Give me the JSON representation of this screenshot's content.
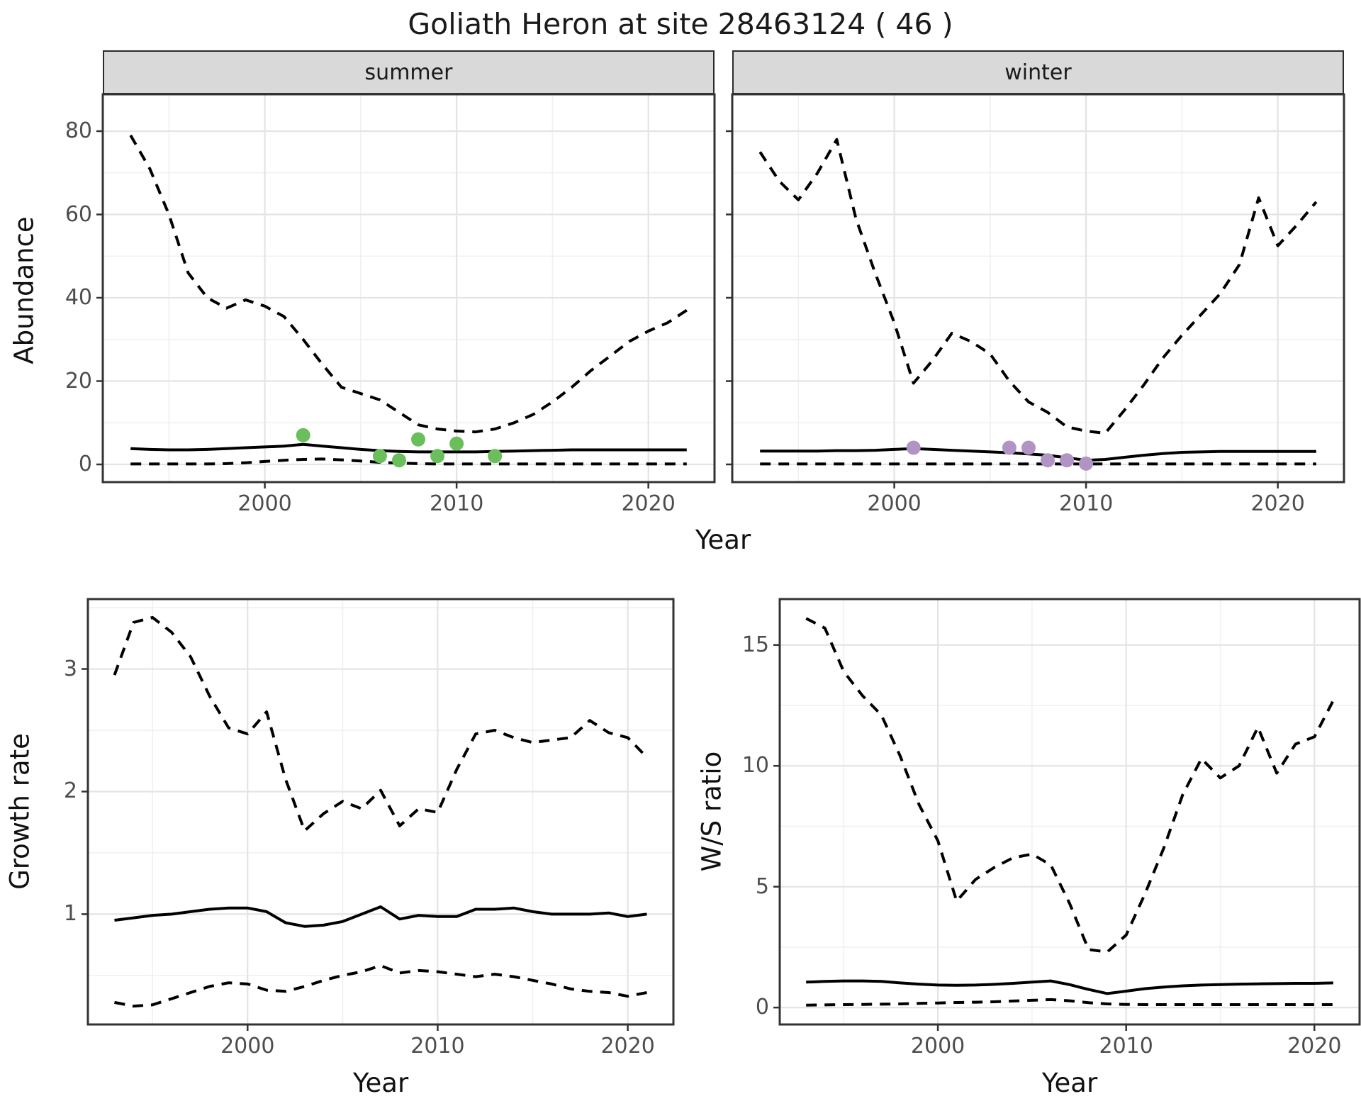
{
  "title": "Goliath Heron at site 28463124 ( 46 )",
  "colors": {
    "line": "#000000",
    "points_summer": "#6abe5c",
    "points_winter": "#b194c4",
    "strip_bg": "#d9d9d9",
    "strip_border": "#2b2b2b",
    "panel_border": "#333333",
    "grid_major": "#e4e4e4",
    "grid_minor": "#f0f0f0",
    "tick_text": "#4d4d4d"
  },
  "chart_data": [
    {
      "type": "line",
      "facet": "summer",
      "ylabel": "Abundance",
      "xlabel": "Year",
      "x_range": [
        1991.55,
        2023.45
      ],
      "y_range": [
        -4.25,
        88.85
      ],
      "xticks": [
        2000,
        2010,
        2020
      ],
      "yticks": [
        0,
        20,
        40,
        60,
        80
      ],
      "xminor": [
        1995,
        2005,
        2015
      ],
      "yminor": [
        10,
        30,
        50,
        70
      ],
      "grid": true,
      "legend": "none",
      "years": [
        1993,
        1994,
        1995,
        1996,
        1997,
        1998,
        1999,
        2000,
        2001,
        2002,
        2003,
        2004,
        2005,
        2006,
        2007,
        2008,
        2009,
        2010,
        2011,
        2012,
        2013,
        2014,
        2015,
        2016,
        2017,
        2018,
        2019,
        2020,
        2021,
        2022
      ],
      "series": [
        {
          "name": "upper_95ci",
          "style": "dashed",
          "values": [
            79,
            71,
            60,
            46,
            40,
            37.5,
            39.5,
            38,
            35.5,
            30,
            24,
            18.5,
            17,
            15.5,
            12.5,
            9.5,
            8.5,
            8,
            7.8,
            8.5,
            10,
            12,
            15,
            18.5,
            22.5,
            26,
            29.5,
            32,
            34,
            37
          ]
        },
        {
          "name": "median",
          "style": "solid",
          "values": [
            3.8,
            3.6,
            3.5,
            3.5,
            3.6,
            3.8,
            4,
            4.2,
            4.4,
            4.8,
            4.4,
            4,
            3.6,
            3.3,
            3.1,
            3,
            3,
            3,
            3,
            3.1,
            3.2,
            3.3,
            3.4,
            3.5,
            3.5,
            3.5,
            3.5,
            3.5,
            3.5,
            3.5
          ]
        },
        {
          "name": "lower_95ci",
          "style": "dashed",
          "values": [
            0.1,
            0.1,
            0.1,
            0.1,
            0.1,
            0.2,
            0.4,
            0.7,
            1,
            1.2,
            1.3,
            1.1,
            0.8,
            0.5,
            0.3,
            0.2,
            0.1,
            0.1,
            0.1,
            0.1,
            0.1,
            0.1,
            0.1,
            0.1,
            0.1,
            0.1,
            0.1,
            0.1,
            0.1,
            0.1
          ]
        }
      ],
      "points": {
        "color": "#6abe5c",
        "data": [
          [
            2002,
            7
          ],
          [
            2006,
            2
          ],
          [
            2007,
            1
          ],
          [
            2008,
            6
          ],
          [
            2009,
            2
          ],
          [
            2010,
            5
          ],
          [
            2012,
            2
          ]
        ]
      }
    },
    {
      "type": "line",
      "facet": "winter",
      "ylabel": "Abundance",
      "xlabel": "Year",
      "x_range": [
        1991.55,
        2023.45
      ],
      "y_range": [
        -4.25,
        88.85
      ],
      "xticks": [
        2000,
        2010,
        2020
      ],
      "yticks": [
        0,
        20,
        40,
        60,
        80
      ],
      "xminor": [
        1995,
        2005,
        2015
      ],
      "yminor": [
        10,
        30,
        50,
        70
      ],
      "grid": true,
      "legend": "none",
      "years": [
        1993,
        1994,
        1995,
        1996,
        1997,
        1998,
        1999,
        2000,
        2001,
        2002,
        2003,
        2004,
        2005,
        2006,
        2007,
        2008,
        2009,
        2010,
        2011,
        2012,
        2013,
        2014,
        2015,
        2016,
        2017,
        2018,
        2019,
        2020,
        2021,
        2022
      ],
      "series": [
        {
          "name": "upper_95ci",
          "style": "dashed",
          "values": [
            75,
            68,
            63.5,
            70,
            78,
            59,
            46,
            34,
            19.5,
            25,
            31.5,
            29.5,
            26.5,
            20,
            15,
            12.5,
            9,
            8,
            7.5,
            13,
            19,
            25.5,
            31,
            36,
            41,
            48,
            64,
            52.5,
            57.5,
            63
          ]
        },
        {
          "name": "median",
          "style": "solid",
          "values": [
            3.2,
            3.2,
            3.2,
            3.2,
            3.3,
            3.3,
            3.4,
            3.6,
            3.8,
            3.6,
            3.4,
            3.2,
            3,
            2.8,
            2.5,
            2.2,
            1.6,
            1,
            1.2,
            1.7,
            2.2,
            2.6,
            2.9,
            3,
            3.1,
            3.1,
            3.1,
            3.1,
            3.1,
            3.1
          ]
        },
        {
          "name": "lower_95ci",
          "style": "dashed",
          "values": [
            0.1,
            0.1,
            0.1,
            0.1,
            0.1,
            0.1,
            0.1,
            0.1,
            0.1,
            0.1,
            0.1,
            0.1,
            0.1,
            0.1,
            0.1,
            0.1,
            0.1,
            0.1,
            0.1,
            0.1,
            0.1,
            0.1,
            0.1,
            0.1,
            0.1,
            0.1,
            0.1,
            0.1,
            0.1,
            0.1
          ]
        }
      ],
      "points": {
        "color": "#b194c4",
        "data": [
          [
            2001,
            4
          ],
          [
            2006,
            4
          ],
          [
            2007,
            4
          ],
          [
            2008,
            1
          ],
          [
            2009,
            1
          ],
          [
            2010,
            0.2
          ]
        ]
      }
    },
    {
      "type": "line",
      "facet": null,
      "ylabel": "Growth rate",
      "xlabel": "Year",
      "x_range": [
        1991.6,
        2022.4
      ],
      "y_range": [
        0.1,
        3.57
      ],
      "xticks": [
        2000,
        2010,
        2020
      ],
      "yticks": [
        1,
        2,
        3
      ],
      "xminor": [
        1995,
        2005,
        2015
      ],
      "yminor": [
        0.5,
        1.5,
        2.5,
        3.5
      ],
      "grid": true,
      "legend": "none",
      "years": [
        1993,
        1994,
        1995,
        1996,
        1997,
        1998,
        1999,
        2000,
        2001,
        2002,
        2003,
        2004,
        2005,
        2006,
        2007,
        2008,
        2009,
        2010,
        2011,
        2012,
        2013,
        2014,
        2015,
        2016,
        2017,
        2018,
        2019,
        2020,
        2021
      ],
      "series": [
        {
          "name": "upper_95ci",
          "style": "dashed",
          "values": [
            2.95,
            3.38,
            3.42,
            3.3,
            3.1,
            2.78,
            2.52,
            2.47,
            2.65,
            2.1,
            1.68,
            1.82,
            1.92,
            1.86,
            2.01,
            1.72,
            1.86,
            1.83,
            2.18,
            2.47,
            2.5,
            2.44,
            2.4,
            2.42,
            2.44,
            2.58,
            2.48,
            2.44,
            2.28
          ]
        },
        {
          "name": "median",
          "style": "solid",
          "values": [
            0.95,
            0.97,
            0.99,
            1.0,
            1.02,
            1.04,
            1.05,
            1.05,
            1.02,
            0.93,
            0.9,
            0.91,
            0.94,
            1.0,
            1.06,
            0.96,
            0.99,
            0.98,
            0.98,
            1.04,
            1.04,
            1.05,
            1.02,
            1.0,
            1.0,
            1.0,
            1.01,
            0.98,
            1.0
          ]
        },
        {
          "name": "lower_95ci",
          "style": "dashed",
          "values": [
            0.28,
            0.25,
            0.26,
            0.31,
            0.36,
            0.41,
            0.44,
            0.43,
            0.38,
            0.37,
            0.41,
            0.46,
            0.5,
            0.53,
            0.58,
            0.52,
            0.54,
            0.53,
            0.51,
            0.49,
            0.51,
            0.49,
            0.46,
            0.43,
            0.39,
            0.37,
            0.36,
            0.33,
            0.36
          ]
        }
      ],
      "points": null
    },
    {
      "type": "line",
      "facet": null,
      "ylabel": "W/S ratio",
      "xlabel": "Year",
      "x_range": [
        1991.6,
        2022.4
      ],
      "y_range": [
        -0.7,
        16.9
      ],
      "xticks": [
        2000,
        2010,
        2020
      ],
      "yticks": [
        0,
        5,
        10,
        15
      ],
      "xminor": [
        1995,
        2005,
        2015
      ],
      "yminor": [
        2.5,
        7.5,
        12.5
      ],
      "grid": true,
      "legend": "none",
      "years": [
        1993,
        1994,
        1995,
        1996,
        1997,
        1998,
        1999,
        2000,
        2001,
        2002,
        2003,
        2004,
        2005,
        2006,
        2007,
        2008,
        2009,
        2010,
        2011,
        2012,
        2013,
        2014,
        2015,
        2016,
        2017,
        2018,
        2019,
        2020,
        2021
      ],
      "series": [
        {
          "name": "upper_95ci",
          "style": "dashed",
          "values": [
            16.1,
            15.7,
            13.9,
            12.9,
            12.1,
            10.4,
            8.4,
            6.9,
            4.4,
            5.3,
            5.8,
            6.2,
            6.35,
            5.9,
            4.3,
            2.4,
            2.3,
            3.0,
            4.7,
            6.6,
            8.8,
            10.3,
            9.5,
            10.0,
            11.6,
            9.7,
            10.9,
            11.2,
            12.7
          ]
        },
        {
          "name": "median",
          "style": "solid",
          "values": [
            1.05,
            1.08,
            1.1,
            1.1,
            1.08,
            1.02,
            0.97,
            0.93,
            0.92,
            0.93,
            0.96,
            1.0,
            1.05,
            1.1,
            0.95,
            0.75,
            0.58,
            0.68,
            0.78,
            0.85,
            0.9,
            0.93,
            0.95,
            0.97,
            0.98,
            0.99,
            1.0,
            1.0,
            1.02
          ]
        },
        {
          "name": "lower_95ci",
          "style": "dashed",
          "values": [
            0.1,
            0.11,
            0.12,
            0.13,
            0.14,
            0.15,
            0.17,
            0.19,
            0.21,
            0.22,
            0.24,
            0.27,
            0.3,
            0.33,
            0.28,
            0.2,
            0.15,
            0.13,
            0.12,
            0.12,
            0.12,
            0.12,
            0.12,
            0.12,
            0.12,
            0.12,
            0.12,
            0.12,
            0.12
          ]
        }
      ],
      "points": null
    }
  ]
}
